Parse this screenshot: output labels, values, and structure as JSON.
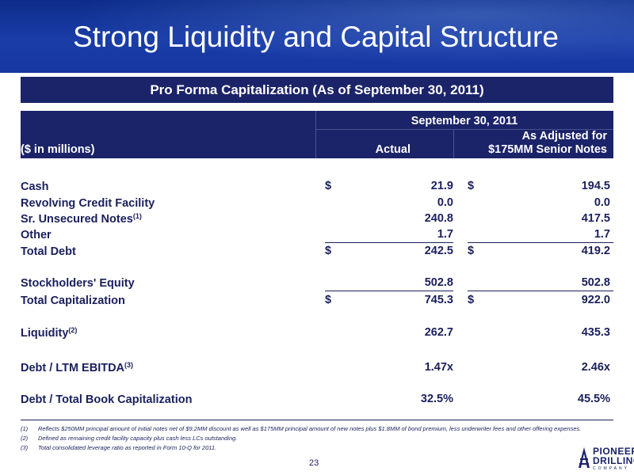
{
  "slide": {
    "title": "Strong Liquidity and Capital Structure",
    "page_number": "23"
  },
  "table": {
    "banner": "Pro Forma Capitalization (As of September 30, 2011)",
    "header": {
      "date": "September 30, 2011",
      "label": "($ in millions)",
      "actual": "Actual",
      "adjusted_line1": "As Adjusted for",
      "adjusted_line2": "$175MM Senior Notes"
    },
    "rows": [
      {
        "label": "Cash",
        "sup": "",
        "dollar1": "$",
        "actual": "21.9",
        "dollar2": "$",
        "adjusted": "194.5"
      },
      {
        "label": "Revolving Credit Facility",
        "sup": "",
        "dollar1": "",
        "actual": "0.0",
        "dollar2": "",
        "adjusted": "0.0"
      },
      {
        "label": "Sr. Unsecured Notes",
        "sup": "(1)",
        "dollar1": "",
        "actual": "240.8",
        "dollar2": "",
        "adjusted": "417.5"
      },
      {
        "label": "Other",
        "sup": "",
        "dollar1": "",
        "actual": "1.7",
        "dollar2": "",
        "adjusted": "1.7"
      },
      {
        "label": "Total Debt",
        "sup": "",
        "dollar1": "$",
        "actual": "242.5",
        "dollar2": "$",
        "adjusted": "419.2"
      },
      {
        "label": "Stockholders' Equity",
        "sup": "",
        "dollar1": "",
        "actual": "502.8",
        "dollar2": "",
        "adjusted": "502.8"
      },
      {
        "label": "Total Capitalization",
        "sup": "",
        "dollar1": "$",
        "actual": "745.3",
        "dollar2": "$",
        "adjusted": "922.0"
      },
      {
        "label": "Liquidity",
        "sup": "(2)",
        "dollar1": "",
        "actual": "262.7",
        "dollar2": "",
        "adjusted": "435.3"
      },
      {
        "label": "Debt / LTM EBITDA",
        "sup": "(3)",
        "dollar1": "",
        "actual": "1.47x",
        "dollar2": "",
        "adjusted": "2.46x"
      },
      {
        "label": "Debt / Total Book Capitalization",
        "sup": "",
        "dollar1": "",
        "actual": "32.5%",
        "dollar2": "",
        "adjusted": "45.5%"
      }
    ]
  },
  "footnotes": [
    {
      "num": "(1)",
      "text": "Reflects $250MM principal amount of initial notes net of $9.2MM discount as well as $175MM principal amount of new notes plus $1.8MM of bond premium, less underwriter fees and other offering expenses."
    },
    {
      "num": "(2)",
      "text": "Defined as remaining credit facility capacity plus cash less LCs outstanding."
    },
    {
      "num": "(3)",
      "text": "Total consolidated leverage ratio as reported in Form 10-Q for 2011."
    }
  ],
  "logo": {
    "line1": "PIONEER",
    "line2": "DRILLING",
    "line3": "COMPANY"
  },
  "colors": {
    "header_blue": "#1636a0",
    "navy": "#1b2369",
    "text": "#1a1f5c"
  }
}
